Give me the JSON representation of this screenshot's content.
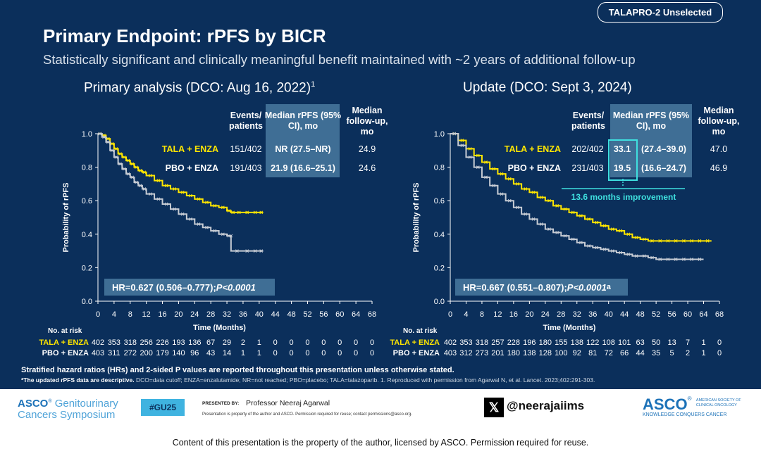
{
  "badge": "TALAPRO-2 Unselected",
  "title": "Primary Endpoint: rPFS by BICR",
  "subtitle": "Statistically significant and clinically meaningful benefit maintained with ~2 years of additional follow-up",
  "colors": {
    "background": "#0b2f5b",
    "tala": "#ffe600",
    "pbo": "#c7ccd4",
    "highlight": "#3fe0df",
    "box": "#3f6e95"
  },
  "table_headers": {
    "events": "Events/ patients",
    "median": "Median rPFS (95% CI), mo",
    "followup": "Median follow-up, mo"
  },
  "risk_labels": {
    "header": "No. at risk",
    "tala": "TALA + ENZA",
    "pbo": "PBO + ENZA"
  },
  "improvement": "13.6 months improvement",
  "footnote": {
    "line1": "Stratified hazard ratios (HRs) and 2-sided P values are reported throughout this presentation unless otherwise stated.",
    "bold": "*The updated rPFS data are descriptive.",
    "rest": " DCO=data cutoff; ENZA=enzalutamide; NR=not reached; PBO=placebo; TALA=talazoparib. 1. Reproduced with permission from Agarwal N, et al. Lancet. 2023;402:291-303."
  },
  "banner": {
    "congress_l1": "Genitourinary",
    "congress_l2": "Cancers Symposium",
    "asco_small": "ASCO",
    "hashtag": "#GU25",
    "presented_by_label": "PRESENTED BY:",
    "presenter": "Professor Neeraj Agarwal",
    "property_note": "Presentation is property of the author and ASCO. Permission required for reuse; contact permissions@asco.org.",
    "x_handle": "@neerajaiims",
    "asco_big": "ASCO",
    "asco_sub1": "AMERICAN SOCIETY OF",
    "asco_sub2": "CLINICAL ONCOLOGY",
    "asco_tagline": "KNOWLEDGE CONQUERS CANCER"
  },
  "bottom_line": "Content of this presentation is the property of the author, licensed by ASCO. Permission required for reuse.",
  "chart_data": [
    {
      "type": "line",
      "title": "Primary analysis (DCO: Aug 16, 2022)",
      "title_sup": "1",
      "xlabel": "Time (Months)",
      "ylabel": "Probability of rPFS",
      "xlim": [
        0,
        68
      ],
      "ylim": [
        0,
        1.0
      ],
      "xticks": [
        "0",
        "4",
        "8",
        "12",
        "16",
        "20",
        "24",
        "28",
        "32",
        "36",
        "40",
        "44",
        "48",
        "52",
        "56",
        "60",
        "64",
        "68"
      ],
      "yticks": [
        "0.0",
        "0.2",
        "0.4",
        "0.6",
        "0.8",
        "1.0"
      ],
      "hr_text": "HR=0.627 (0.506–0.777); ",
      "p_text": "P<0.0001",
      "p_sup": "",
      "series": [
        {
          "name": "TALA + ENZA",
          "events": "151/402",
          "median": "NR (27.5–NR)",
          "followup": "24.9",
          "x": [
            0,
            1,
            2,
            3,
            4,
            5,
            6,
            7,
            8,
            9,
            10,
            11,
            12,
            14,
            16,
            18,
            20,
            22,
            24,
            26,
            28,
            30,
            32,
            33,
            34,
            36,
            38,
            40,
            41
          ],
          "y": [
            1.0,
            0.99,
            0.97,
            0.94,
            0.91,
            0.88,
            0.86,
            0.84,
            0.82,
            0.8,
            0.78,
            0.77,
            0.75,
            0.72,
            0.69,
            0.67,
            0.65,
            0.63,
            0.61,
            0.59,
            0.57,
            0.56,
            0.54,
            0.53,
            0.53,
            0.53,
            0.53,
            0.53,
            0.53
          ],
          "at_risk": [
            "402",
            "353",
            "318",
            "256",
            "226",
            "193",
            "136",
            "67",
            "29",
            "2",
            "1",
            "0",
            "0",
            "0",
            "0",
            "0",
            "0",
            "0"
          ]
        },
        {
          "name": "PBO + ENZA",
          "events": "191/403",
          "median": "21.9 (16.6–25.1)",
          "followup": "24.6",
          "x": [
            0,
            1,
            2,
            3,
            4,
            5,
            6,
            7,
            8,
            9,
            10,
            11,
            12,
            14,
            16,
            18,
            20,
            22,
            24,
            26,
            28,
            30,
            32,
            33,
            33.01,
            36,
            38,
            40,
            41
          ],
          "y": [
            1.0,
            0.98,
            0.95,
            0.9,
            0.86,
            0.82,
            0.79,
            0.76,
            0.74,
            0.71,
            0.69,
            0.67,
            0.64,
            0.61,
            0.58,
            0.55,
            0.52,
            0.49,
            0.46,
            0.44,
            0.42,
            0.4,
            0.39,
            0.39,
            0.3,
            0.3,
            0.3,
            0.3,
            0.3
          ],
          "at_risk": [
            "403",
            "311",
            "272",
            "200",
            "179",
            "140",
            "96",
            "43",
            "14",
            "1",
            "1",
            "0",
            "0",
            "0",
            "0",
            "0",
            "0",
            "0"
          ]
        }
      ]
    },
    {
      "type": "line",
      "title": "Update (DCO: Sept 3, 2024)",
      "title_sup": "",
      "xlabel": "Time (Months)",
      "ylabel": "Probability of rPFS",
      "xlim": [
        0,
        68
      ],
      "ylim": [
        0,
        1.0
      ],
      "xticks": [
        "0",
        "4",
        "8",
        "12",
        "16",
        "20",
        "24",
        "28",
        "32",
        "36",
        "40",
        "44",
        "48",
        "52",
        "56",
        "60",
        "64",
        "68"
      ],
      "yticks": [
        "0.0",
        "0.2",
        "0.4",
        "0.6",
        "0.8",
        "1.0"
      ],
      "hr_text": "HR=0.667 (0.551–0.807); ",
      "p_text": "P<0.0001",
      "p_sup": "a",
      "series": [
        {
          "name": "TALA + ENZA",
          "events": "202/402",
          "median": "33.1",
          "ci": "(27.4–39.0)",
          "followup": "47.0",
          "x": [
            0,
            2,
            4,
            6,
            8,
            10,
            12,
            14,
            16,
            18,
            20,
            22,
            24,
            26,
            28,
            30,
            32,
            34,
            36,
            38,
            40,
            42,
            44,
            46,
            48,
            50,
            52,
            54,
            56,
            58,
            60,
            62,
            64,
            66
          ],
          "y": [
            1.0,
            0.96,
            0.91,
            0.87,
            0.83,
            0.79,
            0.76,
            0.73,
            0.7,
            0.67,
            0.65,
            0.62,
            0.6,
            0.57,
            0.55,
            0.53,
            0.51,
            0.49,
            0.47,
            0.45,
            0.43,
            0.42,
            0.4,
            0.38,
            0.37,
            0.36,
            0.36,
            0.36,
            0.36,
            0.36,
            0.36,
            0.36,
            0.36,
            0.36
          ],
          "at_risk": [
            "402",
            "353",
            "318",
            "257",
            "228",
            "196",
            "180",
            "155",
            "138",
            "122",
            "108",
            "101",
            "63",
            "50",
            "13",
            "7",
            "1",
            "0"
          ]
        },
        {
          "name": "PBO + ENZA",
          "events": "231/403",
          "median": "19.5",
          "ci": "(16.6–24.7)",
          "followup": "46.9",
          "x": [
            0,
            2,
            4,
            6,
            8,
            10,
            12,
            14,
            16,
            18,
            20,
            22,
            24,
            26,
            28,
            30,
            32,
            34,
            36,
            38,
            40,
            42,
            44,
            46,
            48,
            50,
            52,
            54,
            56,
            58,
            60,
            62,
            64
          ],
          "y": [
            1.0,
            0.93,
            0.86,
            0.8,
            0.74,
            0.69,
            0.64,
            0.6,
            0.56,
            0.52,
            0.49,
            0.46,
            0.43,
            0.41,
            0.39,
            0.37,
            0.35,
            0.33,
            0.32,
            0.31,
            0.3,
            0.29,
            0.28,
            0.27,
            0.27,
            0.26,
            0.25,
            0.25,
            0.25,
            0.25,
            0.25,
            0.25,
            0.25
          ],
          "at_risk": [
            "403",
            "312",
            "273",
            "201",
            "180",
            "138",
            "128",
            "100",
            "92",
            "81",
            "72",
            "66",
            "44",
            "35",
            "5",
            "2",
            "1",
            "0"
          ]
        }
      ]
    }
  ]
}
